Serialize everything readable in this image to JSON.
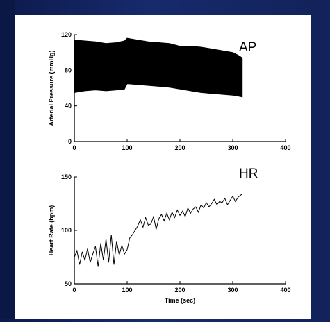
{
  "chart_data": [
    {
      "type": "area",
      "annotation": "AP",
      "xlabel": "",
      "ylabel": "Arterial Pressure (mmHg)",
      "xlim": [
        0,
        400
      ],
      "ylim": [
        0,
        120
      ],
      "xticks": [
        0,
        100,
        200,
        300,
        400
      ],
      "yticks": [
        0,
        40,
        80,
        120
      ],
      "series": [
        {
          "x": [
            0,
            20,
            40,
            60,
            80,
            95,
            100,
            120,
            140,
            160,
            180,
            200,
            220,
            240,
            260,
            280,
            300,
            310,
            318
          ],
          "upper": [
            114,
            113,
            112,
            110,
            111,
            113,
            116,
            114,
            112,
            111,
            110,
            107,
            107,
            106,
            104,
            102,
            100,
            97,
            94
          ],
          "lower": [
            55,
            57,
            58,
            57,
            58,
            59,
            65,
            64,
            63,
            62,
            61,
            59,
            57,
            55,
            54,
            53,
            52,
            51,
            50
          ]
        }
      ]
    },
    {
      "type": "line",
      "annotation": "HR",
      "xlabel": "Time (sec)",
      "ylabel": "Heart Rate (bpm)",
      "xlim": [
        0,
        400
      ],
      "ylim": [
        50,
        150
      ],
      "xticks": [
        0,
        100,
        200,
        300,
        400
      ],
      "yticks": [
        50,
        100,
        150
      ],
      "series": [
        {
          "x": [
            0,
            5,
            10,
            15,
            20,
            25,
            30,
            35,
            40,
            45,
            50,
            55,
            60,
            65,
            70,
            75,
            80,
            85,
            90,
            95,
            100,
            105,
            110,
            115,
            120,
            125,
            130,
            135,
            140,
            145,
            150,
            155,
            160,
            165,
            170,
            175,
            180,
            185,
            190,
            195,
            200,
            205,
            210,
            215,
            220,
            225,
            230,
            235,
            240,
            245,
            250,
            255,
            260,
            265,
            270,
            275,
            280,
            285,
            290,
            295,
            300,
            305,
            310,
            315,
            318
          ],
          "y": [
            75,
            81,
            68,
            80,
            72,
            83,
            70,
            78,
            85,
            66,
            88,
            72,
            92,
            70,
            96,
            68,
            90,
            77,
            86,
            78,
            82,
            93,
            96,
            100,
            104,
            110,
            103,
            112,
            105,
            106,
            113,
            101,
            111,
            115,
            109,
            116,
            110,
            117,
            112,
            119,
            114,
            118,
            113,
            121,
            116,
            120,
            122,
            117,
            124,
            121,
            126,
            122,
            125,
            129,
            124,
            127,
            126,
            130,
            124,
            128,
            132,
            127,
            131,
            133,
            134
          ]
        }
      ]
    }
  ]
}
